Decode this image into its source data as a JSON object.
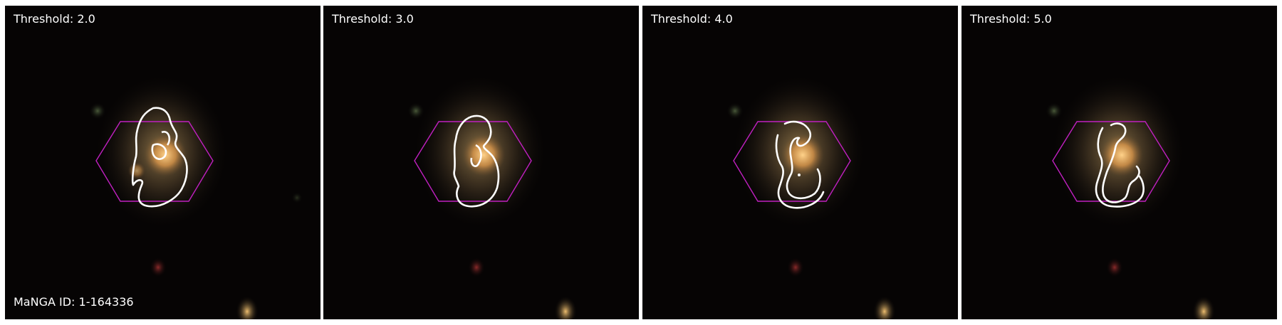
{
  "figure": {
    "panels": [
      {
        "label": "Threshold: 2.0"
      },
      {
        "label": "Threshold: 3.0"
      },
      {
        "label": "Threshold: 4.0"
      },
      {
        "label": "Threshold: 5.0"
      }
    ],
    "manga_id_label": "MaNGA ID: 1-164336"
  },
  "colors": {
    "sky_background": "#060404",
    "galaxy_core": "#f2b15a",
    "contour": "#ffffff",
    "ifu_hexagon": "#c020c0"
  },
  "icons": [
    "galaxy-image",
    "ifu-hexagon-outline",
    "contour-line"
  ]
}
